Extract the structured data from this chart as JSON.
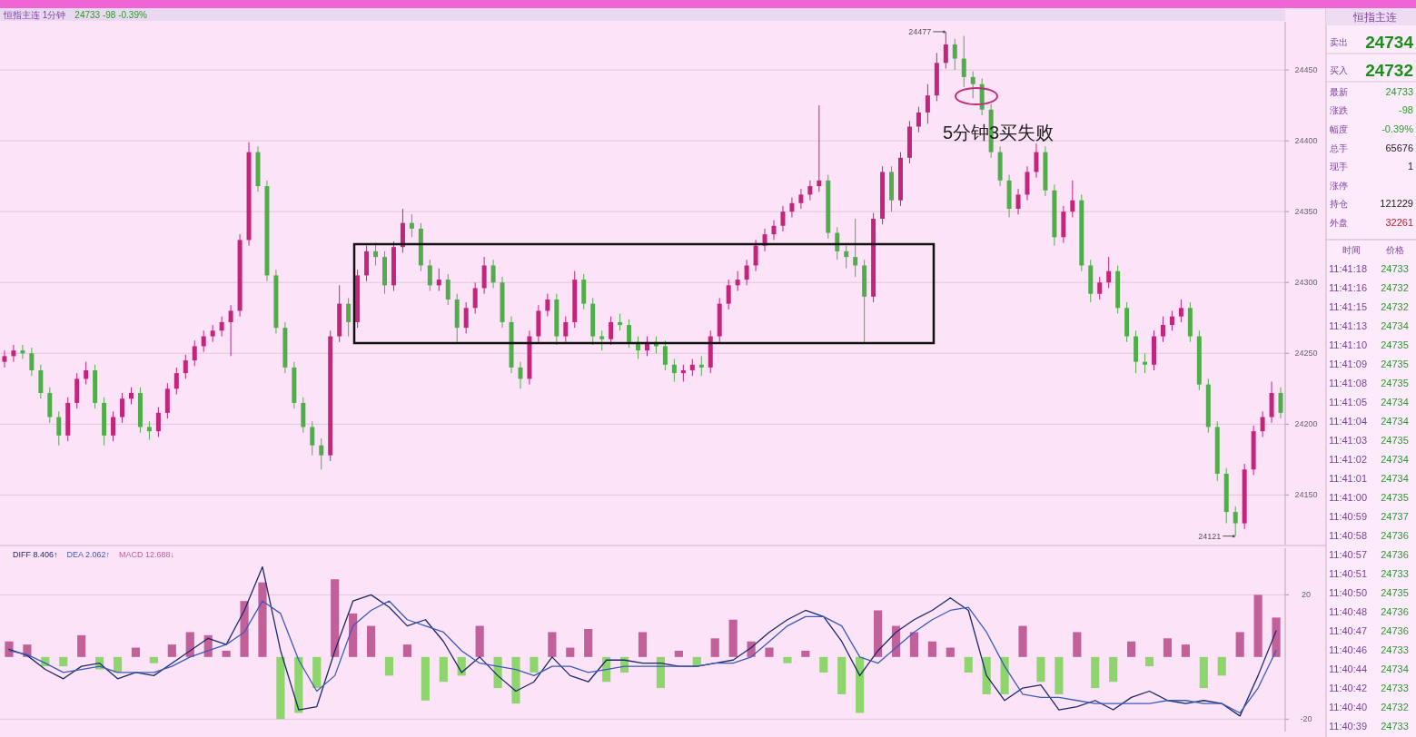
{
  "chart_data": [
    {
      "type": "candlestick",
      "title": "恒指主连 1分钟",
      "subtitle": "24733 -98 -0.39%",
      "tick_labels": "y",
      "grid": "y",
      "ylim": [
        24115,
        24484
      ],
      "yticks": [
        24150,
        24200,
        24250,
        24300,
        24350,
        24400,
        24450
      ],
      "categories": [
        null,
        null,
        null,
        null,
        null,
        null,
        null,
        null,
        null,
        null,
        null,
        null,
        null,
        null,
        null,
        null,
        null,
        null,
        null,
        null,
        null,
        null,
        null,
        null,
        null,
        null,
        null,
        null,
        null,
        null,
        null,
        null,
        null,
        null,
        null,
        null,
        null,
        null,
        null,
        null,
        null,
        null,
        null,
        null,
        null,
        null,
        null,
        null,
        null,
        null,
        null,
        null,
        null,
        null,
        null,
        null,
        null,
        null,
        null,
        null,
        null,
        null,
        null,
        null,
        null,
        null,
        null,
        null,
        null,
        null,
        null,
        null,
        null,
        null,
        null,
        null,
        null,
        null,
        null,
        null,
        null,
        null,
        null,
        null,
        null,
        null,
        null,
        null,
        null,
        null,
        null,
        null,
        null,
        null,
        null,
        null,
        null,
        null,
        null,
        null,
        null,
        null,
        null,
        null,
        null,
        null,
        null,
        null,
        null,
        null,
        null,
        null,
        null,
        null,
        null,
        null,
        null,
        null,
        null,
        null,
        null,
        null,
        null,
        null,
        null,
        null,
        null,
        null,
        null,
        null,
        null,
        null,
        null,
        null,
        null,
        null,
        null,
        null,
        null,
        null,
        null,
        null
      ],
      "ohlc": [
        [
          24244,
          24252,
          24240,
          24248
        ],
        [
          24248,
          24256,
          24244,
          24252
        ],
        [
          24252,
          24256,
          24246,
          24250
        ],
        [
          24250,
          24254,
          24234,
          24238
        ],
        [
          24238,
          24242,
          24218,
          24222
        ],
        [
          24222,
          24226,
          24201,
          24205
        ],
        [
          24205,
          24209,
          24185,
          24192
        ],
        [
          24192,
          24219,
          24188,
          24215
        ],
        [
          24215,
          24236,
          24211,
          24232
        ],
        [
          24232,
          24244,
          24228,
          24238
        ],
        [
          24238,
          24242,
          24211,
          24215
        ],
        [
          24215,
          24219,
          24185,
          24192
        ],
        [
          24192,
          24209,
          24188,
          24205
        ],
        [
          24205,
          24222,
          24201,
          24218
        ],
        [
          24218,
          24226,
          24214,
          24222
        ],
        [
          24222,
          24226,
          24194,
          24198
        ],
        [
          24198,
          24202,
          24189,
          24195
        ],
        [
          24195,
          24212,
          24191,
          24208
        ],
        [
          24208,
          24229,
          24204,
          24225
        ],
        [
          24225,
          24240,
          24221,
          24236
        ],
        [
          24236,
          24249,
          24232,
          24245
        ],
        [
          24245,
          24259,
          24241,
          24255
        ],
        [
          24255,
          24266,
          24251,
          24262
        ],
        [
          24262,
          24270,
          24258,
          24266
        ],
        [
          24266,
          24276,
          24262,
          24272
        ],
        [
          24272,
          24284,
          24248,
          24280
        ],
        [
          24280,
          24334,
          24276,
          24330
        ],
        [
          24330,
          24399,
          24326,
          24392
        ],
        [
          24392,
          24396,
          24364,
          24368
        ],
        [
          24368,
          24372,
          24301,
          24305
        ],
        [
          24305,
          24309,
          24264,
          24268
        ],
        [
          24268,
          24272,
          24236,
          24240
        ],
        [
          24240,
          24244,
          24211,
          24215
        ],
        [
          24215,
          24219,
          24194,
          24198
        ],
        [
          24198,
          24202,
          24178,
          24185
        ],
        [
          24185,
          24190,
          24168,
          24178
        ],
        [
          24178,
          24266,
          24174,
          24262
        ],
        [
          24262,
          24298,
          24258,
          24285
        ],
        [
          24285,
          24289,
          24262,
          24272
        ],
        [
          24272,
          24309,
          24268,
          24305
        ],
        [
          24305,
          24326,
          24301,
          24322
        ],
        [
          24322,
          24328,
          24312,
          24318
        ],
        [
          24318,
          24322,
          24292,
          24298
        ],
        [
          24298,
          24329,
          24294,
          24325
        ],
        [
          24325,
          24352,
          24321,
          24342
        ],
        [
          24342,
          24348,
          24332,
          24338
        ],
        [
          24338,
          24342,
          24308,
          24312
        ],
        [
          24312,
          24316,
          24294,
          24298
        ],
        [
          24298,
          24310,
          24294,
          24302
        ],
        [
          24302,
          24306,
          24284,
          24288
        ],
        [
          24288,
          24292,
          24258,
          24268
        ],
        [
          24268,
          24286,
          24264,
          24282
        ],
        [
          24282,
          24300,
          24278,
          24296
        ],
        [
          24296,
          24318,
          24292,
          24312
        ],
        [
          24312,
          24316,
          24296,
          24300
        ],
        [
          24300,
          24304,
          24268,
          24272
        ],
        [
          24272,
          24276,
          24236,
          24240
        ],
        [
          24240,
          24244,
          24225,
          24232
        ],
        [
          24232,
          24266,
          24228,
          24262
        ],
        [
          24262,
          24284,
          24258,
          24280
        ],
        [
          24280,
          24292,
          24276,
          24288
        ],
        [
          24288,
          24292,
          24256,
          24262
        ],
        [
          24262,
          24276,
          24258,
          24272
        ],
        [
          24272,
          24308,
          24268,
          24302
        ],
        [
          24302,
          24306,
          24281,
          24285
        ],
        [
          24285,
          24289,
          24256,
          24262
        ],
        [
          24262,
          24266,
          24252,
          24260
        ],
        [
          24260,
          24276,
          24256,
          24272
        ],
        [
          24272,
          24278,
          24266,
          24270
        ],
        [
          24270,
          24274,
          24254,
          24258
        ],
        [
          24258,
          24262,
          24246,
          24252
        ],
        [
          24252,
          24262,
          24248,
          24258
        ],
        [
          24258,
          24262,
          24250,
          24255
        ],
        [
          24255,
          24259,
          24238,
          24242
        ],
        [
          24242,
          24246,
          24230,
          24236
        ],
        [
          24236,
          24242,
          24230,
          24238
        ],
        [
          24238,
          24246,
          24234,
          24242
        ],
        [
          24242,
          24248,
          24234,
          24240
        ],
        [
          24240,
          24266,
          24236,
          24262
        ],
        [
          24262,
          24289,
          24258,
          24285
        ],
        [
          24285,
          24302,
          24281,
          24298
        ],
        [
          24298,
          24308,
          24294,
          24302
        ],
        [
          24302,
          24316,
          24298,
          24312
        ],
        [
          24312,
          24330,
          24308,
          24326
        ],
        [
          24326,
          24338,
          24322,
          24334
        ],
        [
          24334,
          24344,
          24330,
          24340
        ],
        [
          24340,
          24354,
          24336,
          24350
        ],
        [
          24350,
          24360,
          24346,
          24356
        ],
        [
          24356,
          24366,
          24352,
          24362
        ],
        [
          24362,
          24372,
          24358,
          24368
        ],
        [
          24368,
          24425,
          24364,
          24372
        ],
        [
          24372,
          24376,
          24331,
          24335
        ],
        [
          24335,
          24339,
          24316,
          24322
        ],
        [
          24322,
          24326,
          24310,
          24318
        ],
        [
          24318,
          24345,
          24304,
          24312
        ],
        [
          24312,
          24316,
          24257,
          24290
        ],
        [
          24290,
          24349,
          24286,
          24345
        ],
        [
          24345,
          24382,
          24341,
          24378
        ],
        [
          24378,
          24382,
          24350,
          24358
        ],
        [
          24358,
          24392,
          24354,
          24388
        ],
        [
          24388,
          24414,
          24384,
          24410
        ],
        [
          24410,
          24424,
          24406,
          24420
        ],
        [
          24420,
          24440,
          24412,
          24432
        ],
        [
          24432,
          24462,
          24428,
          24455
        ],
        [
          24455,
          24477,
          24451,
          24468
        ],
        [
          24468,
          24472,
          24450,
          24458
        ],
        [
          24458,
          24474,
          24438,
          24445
        ],
        [
          24445,
          24449,
          24430,
          24440
        ],
        [
          24440,
          24444,
          24418,
          24422
        ],
        [
          24422,
          24426,
          24388,
          24392
        ],
        [
          24392,
          24396,
          24368,
          24372
        ],
        [
          24372,
          24376,
          24346,
          24352
        ],
        [
          24352,
          24366,
          24348,
          24362
        ],
        [
          24362,
          24382,
          24358,
          24378
        ],
        [
          24378,
          24398,
          24374,
          24392
        ],
        [
          24392,
          24396,
          24361,
          24365
        ],
        [
          24365,
          24369,
          24326,
          24332
        ],
        [
          24332,
          24354,
          24328,
          24350
        ],
        [
          24350,
          24372,
          24346,
          24358
        ],
        [
          24358,
          24362,
          24308,
          24312
        ],
        [
          24312,
          24316,
          24286,
          24292
        ],
        [
          24292,
          24304,
          24288,
          24300
        ],
        [
          24300,
          24318,
          24296,
          24308
        ],
        [
          24308,
          24312,
          24278,
          24282
        ],
        [
          24282,
          24286,
          24258,
          24262
        ],
        [
          24262,
          24266,
          24236,
          24244
        ],
        [
          24244,
          24250,
          24236,
          24242
        ],
        [
          24242,
          24266,
          24238,
          24262
        ],
        [
          24262,
          24276,
          24258,
          24270
        ],
        [
          24270,
          24280,
          24266,
          24276
        ],
        [
          24276,
          24288,
          24272,
          24282
        ],
        [
          24282,
          24286,
          24258,
          24262
        ],
        [
          24262,
          24266,
          24224,
          24228
        ],
        [
          24228,
          24232,
          24194,
          24198
        ],
        [
          24198,
          24202,
          24160,
          24165
        ],
        [
          24165,
          24169,
          24130,
          24138
        ],
        [
          24138,
          24142,
          24121,
          24130
        ],
        [
          24130,
          24172,
          24126,
          24168
        ],
        [
          24168,
          24199,
          24164,
          24195
        ],
        [
          24195,
          24209,
          24191,
          24205
        ],
        [
          24205,
          24230,
          24201,
          24222
        ],
        [
          24222,
          24226,
          24204,
          24208
        ]
      ],
      "colors": [
        "#c2257a",
        "#c2257a",
        "#4fae4a",
        "#4fae4a",
        "#4fae4a",
        "#4fae4a",
        "#4fae4a",
        "#c2257a",
        "#c2257a",
        "#c2257a",
        "#4fae4a",
        "#4fae4a",
        "#c2257a",
        "#c2257a",
        "#c2257a",
        "#4fae4a",
        "#4fae4a",
        "#c2257a",
        "#c2257a",
        "#c2257a",
        "#c2257a",
        "#c2257a",
        "#c2257a",
        "#c2257a",
        "#c2257a",
        "#c2257a",
        "#c2257a",
        "#c2257a",
        "#4fae4a",
        "#4fae4a",
        "#4fae4a",
        "#4fae4a",
        "#4fae4a",
        "#4fae4a",
        "#4fae4a",
        "#4fae4a",
        "#c2257a",
        "#c2257a",
        "#4fae4a",
        "#c2257a",
        "#c2257a",
        "#4fae4a",
        "#4fae4a",
        "#c2257a",
        "#c2257a",
        "#4fae4a",
        "#4fae4a",
        "#4fae4a",
        "#c2257a",
        "#4fae4a",
        "#4fae4a",
        "#c2257a",
        "#c2257a",
        "#c2257a",
        "#4fae4a",
        "#4fae4a",
        "#4fae4a",
        "#4fae4a",
        "#c2257a",
        "#c2257a",
        "#c2257a",
        "#4fae4a",
        "#c2257a",
        "#c2257a",
        "#4fae4a",
        "#4fae4a",
        "#4fae4a",
        "#c2257a",
        "#4fae4a",
        "#4fae4a",
        "#4fae4a",
        "#c2257a",
        "#4fae4a",
        "#4fae4a",
        "#4fae4a",
        "#c2257a",
        "#c2257a",
        "#4fae4a",
        "#c2257a",
        "#c2257a",
        "#c2257a",
        "#c2257a",
        "#c2257a",
        "#c2257a",
        "#c2257a",
        "#c2257a",
        "#c2257a",
        "#c2257a",
        "#c2257a",
        "#c2257a",
        "#c2257a",
        "#4fae4a",
        "#4fae4a",
        "#4fae4a",
        "#4fae4a",
        "#4fae4a",
        "#c2257a",
        "#c2257a",
        "#4fae4a",
        "#c2257a",
        "#c2257a",
        "#c2257a",
        "#c2257a",
        "#c2257a",
        "#c2257a",
        "#4fae4a",
        "#4fae4a",
        "#4fae4a",
        "#4fae4a",
        "#4fae4a",
        "#4fae4a",
        "#4fae4a",
        "#c2257a",
        "#c2257a",
        "#c2257a",
        "#4fae4a",
        "#4fae4a",
        "#c2257a",
        "#c2257a",
        "#4fae4a",
        "#4fae4a",
        "#c2257a",
        "#c2257a",
        "#4fae4a",
        "#4fae4a",
        "#4fae4a",
        "#4fae4a",
        "#c2257a",
        "#c2257a",
        "#c2257a",
        "#c2257a",
        "#4fae4a",
        "#4fae4a",
        "#4fae4a",
        "#4fae4a",
        "#4fae4a",
        "#4fae4a",
        "#c2257a",
        "#c2257a",
        "#c2257a",
        "#c2257a",
        "#4fae4a"
      ],
      "annotations": [
        "24477",
        "24121",
        "5分钟3买失败"
      ]
    },
    {
      "type": "line",
      "tick_labels": "y",
      "grid": "y",
      "legend": "top left",
      "ylim": [
        -24,
        35
      ],
      "yticks": [
        -20,
        20
      ],
      "categories": [
        null,
        null,
        null,
        null,
        null,
        null,
        null,
        null,
        null,
        null,
        null,
        null,
        null,
        null,
        null,
        null,
        null,
        null,
        null,
        null,
        null,
        null,
        null,
        null,
        null,
        null,
        null,
        null,
        null,
        null,
        null,
        null,
        null,
        null,
        null,
        null,
        null,
        null,
        null,
        null,
        null,
        null,
        null,
        null,
        null,
        null,
        null,
        null,
        null,
        null,
        null,
        null,
        null,
        null,
        null,
        null,
        null,
        null,
        null,
        null,
        null,
        null,
        null,
        null,
        null,
        null,
        null,
        null,
        null,
        null,
        null
      ],
      "series": [
        {
          "name": "DIFF 8.406↑",
          "type": "line",
          "color": "#1b2a6b",
          "values": [
            2.5,
            0.5,
            -4,
            -7,
            -3,
            -2,
            -7,
            -5,
            -6,
            -2,
            2,
            6,
            4,
            15,
            29,
            2,
            -17,
            -16,
            2,
            18,
            20,
            16,
            10,
            12,
            5,
            -5,
            0,
            -6,
            -11,
            -8,
            0,
            -6,
            -8,
            -1,
            -1,
            -2,
            -2,
            -3,
            -3,
            -2,
            -1,
            3,
            8,
            12,
            15,
            13,
            5,
            -6,
            2,
            8,
            12,
            15,
            19,
            15,
            -6,
            -14,
            -10,
            -9,
            -17,
            -16,
            -14,
            -17,
            -13,
            -11,
            -14,
            -15,
            -14,
            -15,
            -19,
            -6,
            8.406
          ]
        },
        {
          "name": "DEA 2.062↑",
          "type": "line",
          "color": "#3b5cb8",
          "values": [
            2,
            0.8,
            -2,
            -5,
            -4,
            -3,
            -5,
            -5,
            -5,
            -3,
            0,
            2,
            4,
            8,
            18,
            14,
            -1,
            -11,
            -6,
            10,
            15,
            18,
            12,
            10,
            8,
            2,
            -2,
            -3,
            -4,
            -6,
            -3,
            -3,
            -5,
            -4,
            -3,
            -3,
            -3,
            -3,
            -3,
            -2,
            -2,
            0,
            5,
            10,
            13,
            13,
            10,
            0,
            -2,
            3,
            8,
            12,
            15,
            16,
            8,
            -3,
            -12,
            -13,
            -13,
            -14,
            -15,
            -15,
            -15,
            -15,
            -14,
            -14,
            -15,
            -15,
            -18,
            -10,
            2.062
          ]
        },
        {
          "name": "MACD 12.688↓",
          "type": "bar",
          "color": "#c2609a",
          "values": [
            5,
            4,
            -3,
            -3,
            7,
            -4,
            -5,
            3,
            -2,
            4,
            8,
            7,
            2,
            18,
            24,
            -20,
            -18,
            -10,
            25,
            14,
            10,
            -6,
            4,
            -14,
            -8,
            -6,
            10,
            -10,
            -15,
            -5,
            8,
            3,
            9,
            -8,
            -5,
            8,
            -10,
            2,
            -3,
            6,
            12,
            5,
            3,
            -2,
            2,
            -5,
            -12,
            -18,
            15,
            10,
            8,
            5,
            3,
            -5,
            -12,
            -12,
            10,
            -8,
            -12,
            8,
            -10,
            -8,
            5,
            -3,
            6,
            4,
            -10,
            -6,
            8,
            20,
            12.688
          ],
          "colors": [
            "#c2609a",
            "#c2609a",
            "#8fd56e",
            "#8fd56e",
            "#c2609a",
            "#8fd56e",
            "#8fd56e",
            "#c2609a",
            "#8fd56e",
            "#c2609a",
            "#c2609a",
            "#c2609a",
            "#c2609a",
            "#c2609a",
            "#c2609a",
            "#8fd56e",
            "#8fd56e",
            "#8fd56e",
            "#c2609a",
            "#c2609a",
            "#c2609a",
            "#8fd56e",
            "#c2609a",
            "#8fd56e",
            "#8fd56e",
            "#8fd56e",
            "#c2609a",
            "#8fd56e",
            "#8fd56e",
            "#8fd56e",
            "#c2609a",
            "#c2609a",
            "#c2609a",
            "#8fd56e",
            "#8fd56e",
            "#c2609a",
            "#8fd56e",
            "#c2609a",
            "#8fd56e",
            "#c2609a",
            "#c2609a",
            "#c2609a",
            "#c2609a",
            "#8fd56e",
            "#c2609a",
            "#8fd56e",
            "#8fd56e",
            "#8fd56e",
            "#c2609a",
            "#c2609a",
            "#c2609a",
            "#c2609a",
            "#c2609a",
            "#8fd56e",
            "#8fd56e",
            "#8fd56e",
            "#c2609a",
            "#8fd56e",
            "#8fd56e",
            "#c2609a",
            "#8fd56e",
            "#8fd56e",
            "#c2609a",
            "#8fd56e",
            "#c2609a",
            "#c2609a",
            "#8fd56e",
            "#8fd56e",
            "#c2609a",
            "#c2609a",
            "#c2609a"
          ]
        }
      ]
    },
    {
      "type": "other",
      "title": "恒指主连",
      "categories": [
        "卖出",
        "买入",
        "最新",
        "涨跌",
        "幅度",
        "总手",
        "现手",
        "涨停",
        "持仓",
        "外盘"
      ],
      "value_labels": [
        "24734",
        "24732",
        "24733",
        "-98",
        "-0.39%",
        "65676",
        "1",
        null,
        "121229",
        "32261"
      ]
    },
    {
      "type": "heatmap",
      "ylabel": "时间",
      "categories": [
        "价格"
      ],
      "data_labels": true,
      "y_categories": [
        "11:41:18",
        "11:41:16",
        "11:41:15",
        "11:41:13",
        "11:41:10",
        "11:41:09",
        "11:41:08",
        "11:41:05",
        "11:41:04",
        "11:41:03",
        "11:41:02",
        "11:41:01",
        "11:41:00",
        "11:40:59",
        "11:40:58",
        "11:40:57",
        "11:40:51",
        "11:40:50",
        "11:40:48",
        "11:40:47",
        "11:40:46",
        "11:40:44",
        "11:40:42",
        "11:40:40",
        "11:40:39"
      ],
      "cells": [
        [
          24733
        ],
        [
          24732
        ],
        [
          24732
        ],
        [
          24734
        ],
        [
          24735
        ],
        [
          24735
        ],
        [
          24735
        ],
        [
          24734
        ],
        [
          24734
        ],
        [
          24735
        ],
        [
          24734
        ],
        [
          24734
        ],
        [
          24735
        ],
        [
          24737
        ],
        [
          24736
        ],
        [
          24736
        ],
        [
          24733
        ],
        [
          24735
        ],
        [
          24736
        ],
        [
          24736
        ],
        [
          24733
        ],
        [
          24734
        ],
        [
          24733
        ],
        [
          24732
        ],
        [
          24733
        ]
      ]
    }
  ]
}
